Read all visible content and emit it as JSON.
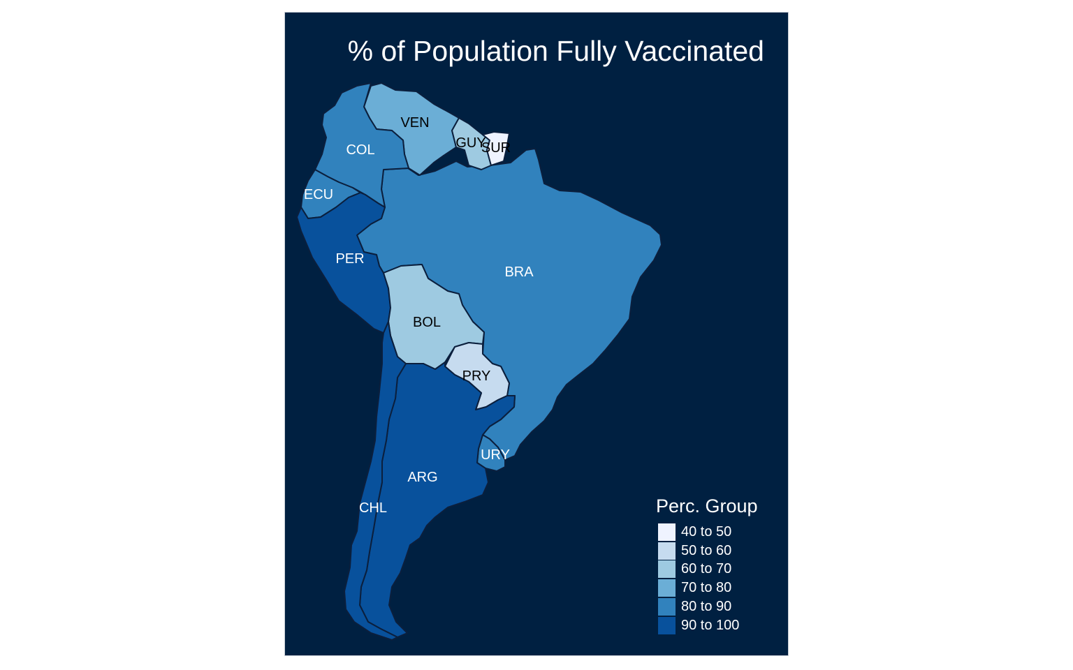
{
  "map": {
    "title": "% of Population Fully Vaccinated",
    "background_color": "#002041",
    "legend": {
      "title": "Perc. Group",
      "position": "bottom-right",
      "items": [
        {
          "label": "40 to 50",
          "color": "#eff3ff"
        },
        {
          "label": "50 to 60",
          "color": "#c6dbef"
        },
        {
          "label": "60 to 70",
          "color": "#9ecae1"
        },
        {
          "label": "70 to 80",
          "color": "#6baed6"
        },
        {
          "label": "80 to 90",
          "color": "#3182bd"
        },
        {
          "label": "90 to 100",
          "color": "#08519c"
        }
      ]
    },
    "countries": [
      {
        "code": "VEN",
        "group": "70 to 80"
      },
      {
        "code": "COL",
        "group": "80 to 90"
      },
      {
        "code": "GUY",
        "group": "60 to 70"
      },
      {
        "code": "SUR",
        "group": "40 to 50"
      },
      {
        "code": "ECU",
        "group": "80 to 90"
      },
      {
        "code": "PER",
        "group": "90 to 100"
      },
      {
        "code": "BRA",
        "group": "80 to 90"
      },
      {
        "code": "BOL",
        "group": "60 to 70"
      },
      {
        "code": "PRY",
        "group": "50 to 60"
      },
      {
        "code": "URY",
        "group": "80 to 90"
      },
      {
        "code": "ARG",
        "group": "90 to 100"
      },
      {
        "code": "CHL",
        "group": "90 to 100"
      }
    ]
  }
}
